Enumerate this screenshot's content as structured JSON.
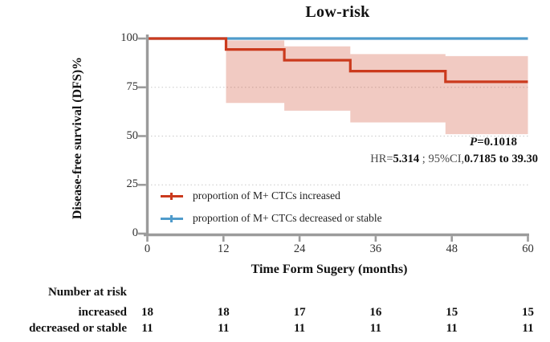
{
  "title": "Low-risk",
  "axes": {
    "y_label": "Disease-free survival (DFS)%",
    "x_label": "Time Form Sugery (months)",
    "x_ticks": [
      0,
      12,
      24,
      36,
      48,
      60
    ],
    "y_ticks": [
      0,
      25,
      50,
      75,
      100
    ]
  },
  "annotations": {
    "p_sym": "P",
    "p_rest": "=0.1018",
    "hr_prefix": "HR=",
    "hr_value": "5.314",
    "hr_mid": " ; 95%CI,",
    "hr_ci": "0.7185 to 39.30"
  },
  "legend": [
    {
      "label": "proportion of M+ CTCs increased",
      "color": "#cb3a1d",
      "marker": "km-censor-line"
    },
    {
      "label": "proportion of M+ CTCs decreased or stable",
      "color": "#4f9bcb",
      "marker": "km-censor-line"
    }
  ],
  "risk_table": {
    "header": "Number at risk",
    "rows": [
      {
        "label": "increased",
        "counts": [
          18,
          18,
          17,
          16,
          15,
          15
        ]
      },
      {
        "label": "decreased or stable",
        "counts": [
          11,
          11,
          11,
          11,
          11,
          11
        ]
      }
    ]
  },
  "colors": {
    "red_line": "#cb3a1d",
    "blue_line": "#4f9bcb",
    "ci_fill": "#cb3a1d",
    "ci_opacity": 0.27,
    "axis": "#9b9b9b",
    "grid": "#c9c9c9"
  },
  "chart_data": {
    "type": "line",
    "subtype": "kaplan-meier-step",
    "title": "Low-risk",
    "xlabel": "Time Form Sugery (months)",
    "ylabel": "Disease-free survival (DFS)%",
    "xlim": [
      0,
      60
    ],
    "ylim": [
      0,
      100
    ],
    "x_ticks": [
      0,
      12,
      24,
      36,
      48,
      60
    ],
    "y_ticks": [
      0,
      25,
      50,
      75,
      100
    ],
    "grid_y": [
      25,
      50,
      75
    ],
    "grid_style": "dotted",
    "legend_position": "inside-lower-left",
    "series": [
      {
        "name": "proportion of M+ CTCs increased",
        "color": "#cb3a1d",
        "step_x": [
          0,
          12.4,
          21.6,
          32,
          47,
          60
        ],
        "step_y": [
          100,
          94.4,
          88.9,
          83.3,
          77.8
        ],
        "ci": {
          "x": [
            12.4,
            21.6,
            32,
            47,
            60
          ],
          "upper": [
            99,
            96,
            92,
            91
          ],
          "lower": [
            67,
            63,
            57,
            51
          ]
        }
      },
      {
        "name": "proportion of M+ CTCs decreased or stable",
        "color": "#4f9bcb",
        "step_x": [
          0,
          60
        ],
        "step_y": [
          100
        ]
      }
    ],
    "annotations": [
      "P=0.1018",
      "HR=5.314 ; 95%CI,0.7185 to 39.30"
    ],
    "number_at_risk": {
      "times": [
        0,
        12,
        24,
        36,
        48,
        60
      ],
      "increased": [
        18,
        18,
        17,
        16,
        15,
        15
      ],
      "decreased_or_stable": [
        11,
        11,
        11,
        11,
        11,
        11
      ]
    }
  }
}
